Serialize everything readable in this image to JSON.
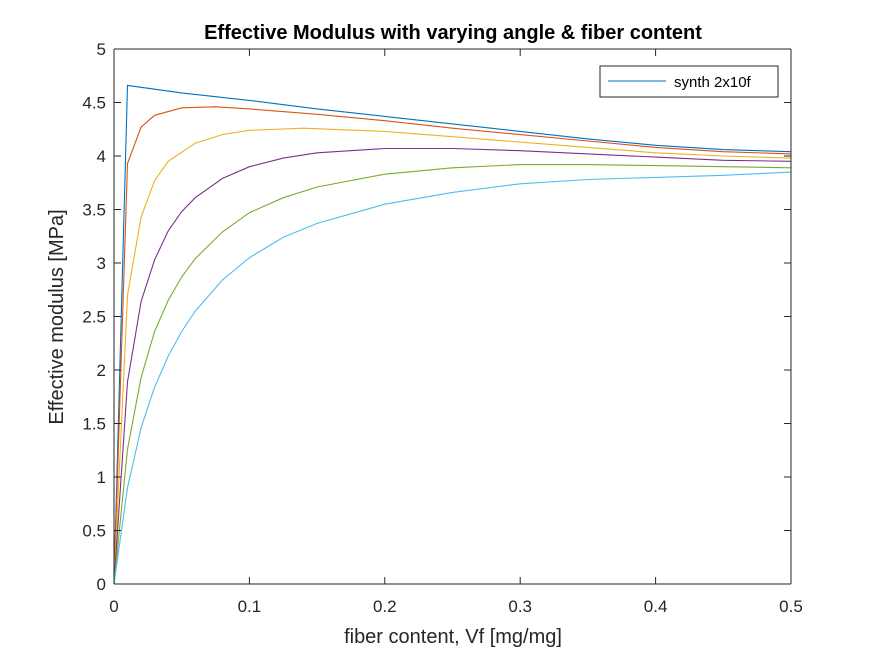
{
  "chart_data": {
    "type": "line",
    "title": "Effective Modulus with varying angle & fiber content",
    "xlabel": "fiber content, Vf [mg/mg]",
    "ylabel": "Effective modulus [MPa]",
    "xlim": [
      0,
      0.5
    ],
    "ylim": [
      0,
      5
    ],
    "xticks": [
      "0",
      "0.1",
      "0.2",
      "0.3",
      "0.4",
      "0.5"
    ],
    "yticks": [
      "0",
      "0.5",
      "1",
      "1.5",
      "2",
      "2.5",
      "3",
      "3.5",
      "4",
      "4.5",
      "5"
    ],
    "grid": false,
    "legend": {
      "location": "top-right",
      "entries": [
        "synth 2x10f"
      ]
    },
    "series": [
      {
        "name": "synth 2x10f",
        "color": "#0072BD",
        "x": [
          0,
          0.01,
          0.05,
          0.1,
          0.15,
          0.2,
          0.25,
          0.3,
          0.35,
          0.4,
          0.45,
          0.5
        ],
        "y": [
          0,
          4.66,
          4.59,
          4.52,
          4.44,
          4.37,
          4.3,
          4.23,
          4.16,
          4.1,
          4.06,
          4.04
        ]
      },
      {
        "color": "#D95319",
        "x": [
          0,
          0.01,
          0.02,
          0.03,
          0.05,
          0.075,
          0.1,
          0.15,
          0.2,
          0.25,
          0.3,
          0.35,
          0.4,
          0.45,
          0.5
        ],
        "y": [
          0,
          3.93,
          4.27,
          4.38,
          4.45,
          4.46,
          4.44,
          4.39,
          4.33,
          4.26,
          4.2,
          4.14,
          4.08,
          4.04,
          4.02
        ]
      },
      {
        "color": "#EDB120",
        "x": [
          0,
          0.01,
          0.02,
          0.03,
          0.04,
          0.06,
          0.08,
          0.1,
          0.14,
          0.2,
          0.25,
          0.3,
          0.35,
          0.4,
          0.45,
          0.5
        ],
        "y": [
          0,
          2.7,
          3.43,
          3.77,
          3.95,
          4.12,
          4.2,
          4.24,
          4.26,
          4.23,
          4.18,
          4.13,
          4.08,
          4.03,
          4.0,
          3.98
        ]
      },
      {
        "color": "#7E2F8E",
        "x": [
          0,
          0.01,
          0.02,
          0.03,
          0.04,
          0.05,
          0.06,
          0.08,
          0.1,
          0.125,
          0.15,
          0.2,
          0.25,
          0.3,
          0.35,
          0.4,
          0.45,
          0.5
        ],
        "y": [
          0,
          1.89,
          2.64,
          3.03,
          3.3,
          3.48,
          3.61,
          3.79,
          3.9,
          3.98,
          4.03,
          4.07,
          4.07,
          4.05,
          4.02,
          3.99,
          3.96,
          3.95
        ]
      },
      {
        "color": "#77AC30",
        "x": [
          0,
          0.01,
          0.02,
          0.03,
          0.04,
          0.05,
          0.06,
          0.08,
          0.1,
          0.125,
          0.15,
          0.2,
          0.25,
          0.3,
          0.35,
          0.4,
          0.45,
          0.5
        ],
        "y": [
          0,
          1.26,
          1.93,
          2.36,
          2.65,
          2.87,
          3.04,
          3.29,
          3.47,
          3.61,
          3.71,
          3.83,
          3.89,
          3.92,
          3.92,
          3.91,
          3.9,
          3.89
        ]
      },
      {
        "color": "#4DBEEE",
        "x": [
          0,
          0.01,
          0.02,
          0.03,
          0.04,
          0.05,
          0.06,
          0.08,
          0.1,
          0.125,
          0.15,
          0.2,
          0.25,
          0.3,
          0.35,
          0.4,
          0.45,
          0.5
        ],
        "y": [
          0,
          0.9,
          1.46,
          1.84,
          2.13,
          2.36,
          2.55,
          2.84,
          3.05,
          3.24,
          3.37,
          3.55,
          3.66,
          3.74,
          3.78,
          3.8,
          3.82,
          3.85
        ]
      }
    ]
  }
}
